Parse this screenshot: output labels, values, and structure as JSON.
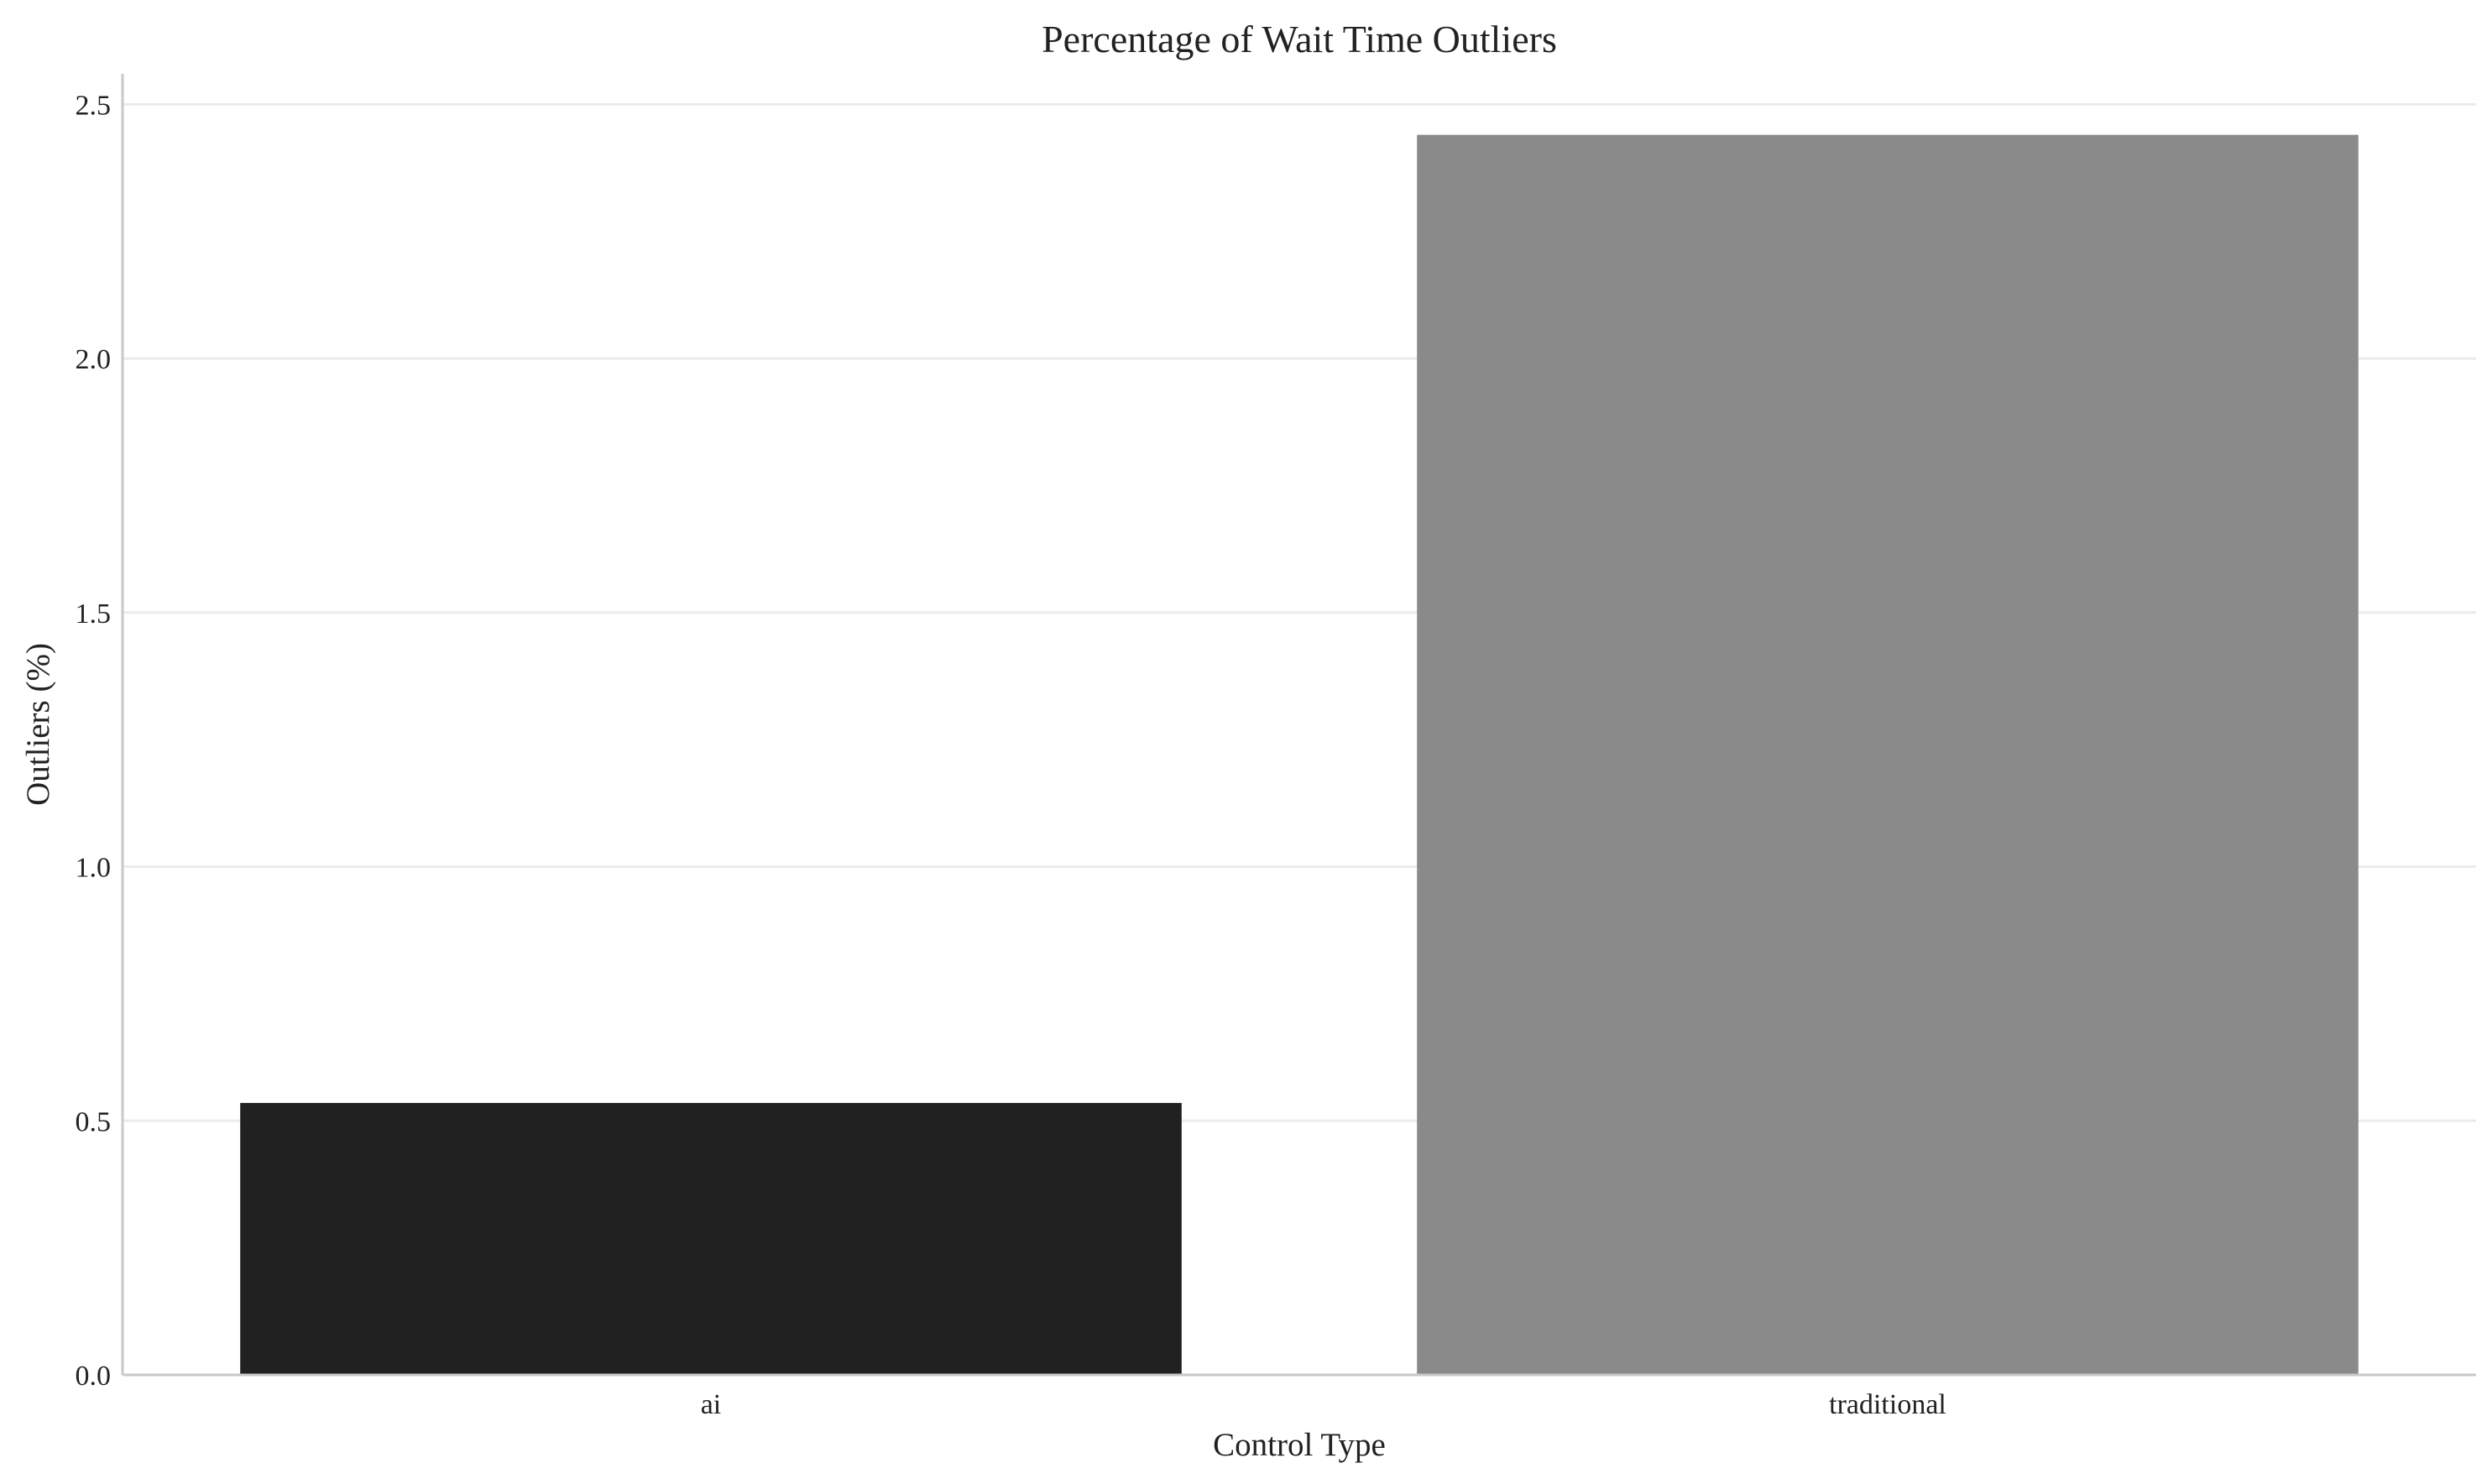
{
  "chart_data": {
    "type": "bar",
    "title": "Percentage of Wait Time Outliers",
    "xlabel": "Control Type",
    "ylabel": "Outliers (%)",
    "categories": [
      "ai",
      "traditional"
    ],
    "values": [
      0.535,
      2.44
    ],
    "ylim": [
      0,
      2.56
    ],
    "yticks": [
      0.0,
      0.5,
      1.0,
      1.5,
      2.0,
      2.5
    ],
    "ytick_labels": [
      "0.0",
      "0.5",
      "1.0",
      "1.5",
      "2.0",
      "2.5"
    ],
    "bar_colors": [
      "#212121",
      "#8a8a8a"
    ],
    "grid": "y",
    "legend": "none"
  }
}
